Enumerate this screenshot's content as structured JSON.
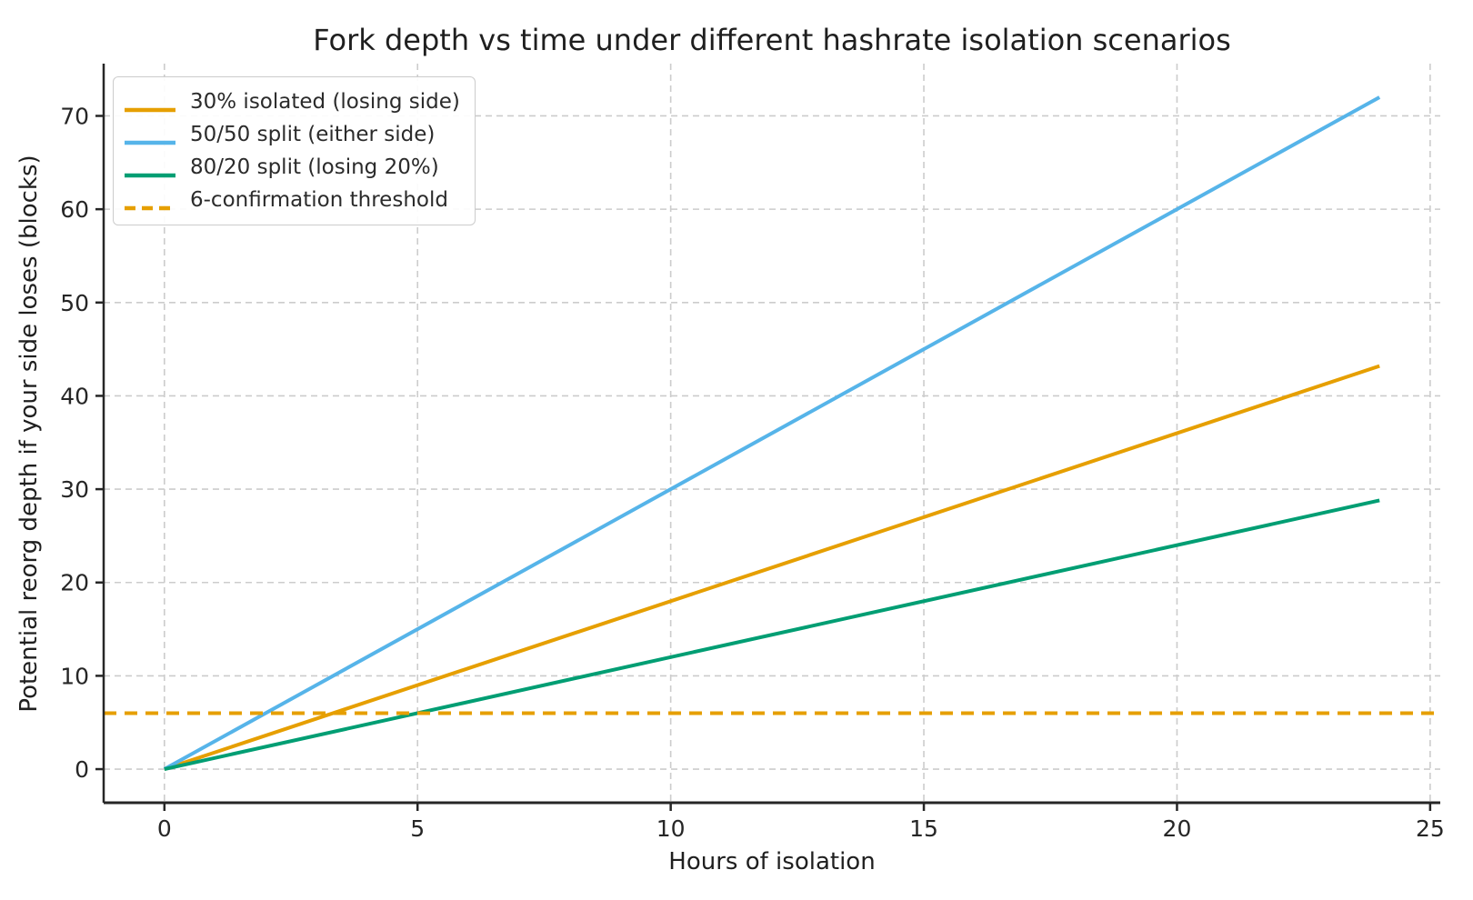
{
  "chart_data": {
    "type": "line",
    "title": "Fork depth vs time under different hashrate isolation scenarios",
    "xlabel": "Hours of isolation",
    "ylabel": "Potential reorg depth if your side loses (blocks)",
    "xlim": [
      -1.2,
      25.2
    ],
    "ylim": [
      -3.6,
      75.6
    ],
    "xticks": [
      0,
      5,
      10,
      15,
      20,
      25
    ],
    "yticks": [
      0,
      10,
      20,
      30,
      40,
      50,
      60,
      70
    ],
    "grid": true,
    "grid_style": "dashed",
    "legend_position": "upper-left",
    "series": [
      {
        "name": "30% isolated (losing side)",
        "color": "#E69F00",
        "style": "solid",
        "x": [
          0,
          24
        ],
        "y": [
          0,
          43.2
        ]
      },
      {
        "name": "50/50 split (either side)",
        "color": "#56B4E9",
        "style": "solid",
        "x": [
          0,
          24
        ],
        "y": [
          0,
          72
        ]
      },
      {
        "name": "80/20 split (losing 20%)",
        "color": "#009E73",
        "style": "solid",
        "x": [
          0,
          24
        ],
        "y": [
          0,
          28.8
        ]
      },
      {
        "name": "6-confirmation threshold",
        "color": "#E69F00",
        "style": "dashed",
        "threshold": true,
        "x": [
          -1.2,
          25.2
        ],
        "y": [
          6,
          6
        ]
      }
    ],
    "colors": {
      "grid": "#CCCCCC",
      "spine": "#262626",
      "tick": "#262626",
      "text": "#1F1F1F",
      "legend_border": "#CCCCCC",
      "background": "#FFFFFF"
    }
  }
}
